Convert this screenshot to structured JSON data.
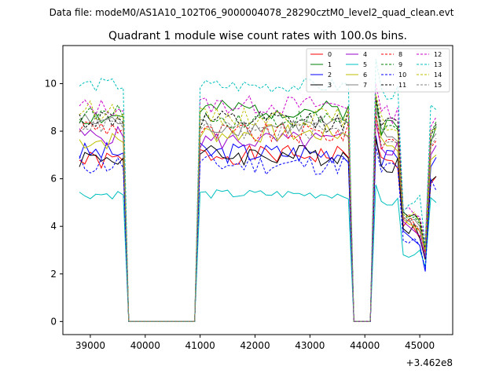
{
  "chart_data": {
    "type": "line",
    "header_text": "Data file: modeM0/AS1A10_102T06_9000004078_28290cztM0_level2_quad_clean.evt",
    "title": "Quadrant 1 module wise count rates with 100.0s bins.",
    "xlabel": "",
    "ylabel": "",
    "x_offset_label": "+3.462e8",
    "xlim": [
      38500,
      45600
    ],
    "ylim": [
      -0.55,
      11.6
    ],
    "x_ticks": [
      39000,
      40000,
      41000,
      42000,
      43000,
      44000,
      45000
    ],
    "x_tick_labels": [
      "39000",
      "40000",
      "41000",
      "42000",
      "43000",
      "44000",
      "45000"
    ],
    "y_ticks": [
      0,
      2,
      4,
      6,
      8,
      10
    ],
    "y_tick_labels": [
      "0",
      "2",
      "4",
      "6",
      "8",
      "10"
    ],
    "grid": false,
    "legend_position": "top-right",
    "segments": [
      {
        "x0": 38800,
        "step": 100,
        "n": 9
      },
      {
        "x0": 39700,
        "step": 100,
        "n": 13
      },
      {
        "x0": 41000,
        "step": 100,
        "n": 28
      },
      {
        "x0": 43800,
        "step": 100,
        "n": 4
      },
      {
        "x0": 44200,
        "step": 100,
        "n": 12
      }
    ],
    "series": [
      {
        "name": "0",
        "color": "#ff0000",
        "dash": "solid",
        "seg_levels": [
          6.75,
          0,
          7.0,
          0,
          6.6
        ],
        "jitter": 0.4,
        "seed": 1,
        "tail": [
          4.0,
          4.3,
          3.9,
          3.5,
          2.8,
          5.8,
          6.1
        ]
      },
      {
        "name": "1",
        "color": "#008000",
        "dash": "solid",
        "seg_levels": [
          8.6,
          0,
          8.9,
          0,
          8.2
        ],
        "jitter": 0.4,
        "seed": 2,
        "tail": [
          4.6,
          4.4,
          4.5,
          4.2,
          3.0,
          7.5,
          8.2
        ]
      },
      {
        "name": "2",
        "color": "#0000ff",
        "dash": "solid",
        "seg_levels": [
          7.1,
          0,
          7.1,
          0,
          6.8
        ],
        "jitter": 0.45,
        "seed": 3,
        "tail": [
          3.8,
          3.6,
          3.4,
          3.2,
          2.1,
          6.5,
          6.9
        ]
      },
      {
        "name": "3",
        "color": "#000000",
        "dash": "solid",
        "seg_levels": [
          6.9,
          0,
          7.0,
          0,
          6.7
        ],
        "jitter": 0.45,
        "seed": 4,
        "tail": [
          3.9,
          3.7,
          4.1,
          3.5,
          2.6,
          5.9,
          6.1
        ]
      },
      {
        "name": "4",
        "color": "#9900cc",
        "dash": "solid",
        "seg_levels": [
          7.8,
          0,
          7.6,
          0,
          7.3
        ],
        "jitter": 0.4,
        "seed": 5,
        "tail": [
          4.2,
          4.0,
          3.8,
          3.6,
          2.7,
          7.0,
          7.4
        ]
      },
      {
        "name": "5",
        "color": "#00bfbf",
        "dash": "solid",
        "seg_levels": [
          5.35,
          0,
          5.35,
          0,
          5.0
        ],
        "jitter": 0.2,
        "seed": 6,
        "tail": [
          2.8,
          2.7,
          2.8,
          3.0,
          2.3,
          5.2,
          5.0
        ]
      },
      {
        "name": "6",
        "color": "#bfbf00",
        "dash": "solid",
        "seg_levels": [
          7.6,
          0,
          7.9,
          0,
          7.5
        ],
        "jitter": 0.4,
        "seed": 7,
        "tail": [
          4.3,
          4.1,
          4.0,
          3.8,
          2.9,
          6.8,
          7.0
        ]
      },
      {
        "name": "7",
        "color": "#808080",
        "dash": "solid",
        "seg_levels": [
          8.4,
          0,
          8.2,
          0,
          7.8
        ],
        "jitter": 0.4,
        "seed": 8,
        "tail": [
          4.4,
          4.2,
          4.3,
          4.0,
          3.1,
          7.6,
          7.9
        ]
      },
      {
        "name": "8",
        "color": "#ff0000",
        "dash": "dashed",
        "seg_levels": [
          8.2,
          0,
          7.9,
          0,
          7.6
        ],
        "jitter": 0.45,
        "seed": 9,
        "tail": [
          4.3,
          4.5,
          4.1,
          3.8,
          2.9,
          7.3,
          7.6
        ]
      },
      {
        "name": "9",
        "color": "#008000",
        "dash": "dashed",
        "seg_levels": [
          8.7,
          0,
          8.5,
          0,
          8.1
        ],
        "jitter": 0.4,
        "seed": 10,
        "tail": [
          4.5,
          4.3,
          4.4,
          4.1,
          3.0,
          7.9,
          8.4
        ]
      },
      {
        "name": "10",
        "color": "#0000ff",
        "dash": "dashed",
        "seg_levels": [
          6.6,
          0,
          6.6,
          0,
          6.4
        ],
        "jitter": 0.45,
        "seed": 11,
        "tail": [
          3.4,
          3.3,
          3.5,
          3.2,
          2.2,
          6.0,
          5.5
        ]
      },
      {
        "name": "11",
        "color": "#000000",
        "dash": "dashed",
        "seg_levels": [
          8.5,
          0,
          8.4,
          0,
          8.2
        ],
        "jitter": 0.45,
        "seed": 12,
        "tail": [
          4.6,
          4.4,
          4.5,
          4.3,
          3.1,
          7.8,
          8.3
        ]
      },
      {
        "name": "12",
        "color": "#cc00cc",
        "dash": "dashed",
        "seg_levels": [
          9.0,
          0,
          9.1,
          0,
          8.7
        ],
        "jitter": 0.4,
        "seed": 13,
        "tail": [
          4.7,
          4.8,
          4.5,
          4.4,
          3.4,
          8.2,
          8.6
        ]
      },
      {
        "name": "13",
        "color": "#00bfbf",
        "dash": "dashed",
        "seg_levels": [
          9.95,
          0,
          9.9,
          0,
          9.6
        ],
        "jitter": 0.3,
        "seed": 14,
        "tail": [
          4.6,
          4.9,
          5.0,
          5.3,
          3.2,
          9.1,
          8.9
        ]
      },
      {
        "name": "14",
        "color": "#bfbf00",
        "dash": "dashed",
        "seg_levels": [
          8.9,
          0,
          8.6,
          0,
          8.3
        ],
        "jitter": 0.4,
        "seed": 15,
        "tail": [
          4.5,
          4.4,
          4.6,
          4.2,
          3.0,
          8.0,
          8.1
        ]
      },
      {
        "name": "15",
        "color": "#808080",
        "dash": "dashed",
        "seg_levels": [
          8.3,
          0,
          8.0,
          0,
          7.7
        ],
        "jitter": 0.4,
        "seed": 16,
        "tail": [
          4.3,
          4.2,
          4.1,
          3.9,
          2.8,
          7.4,
          7.7
        ]
      }
    ]
  }
}
